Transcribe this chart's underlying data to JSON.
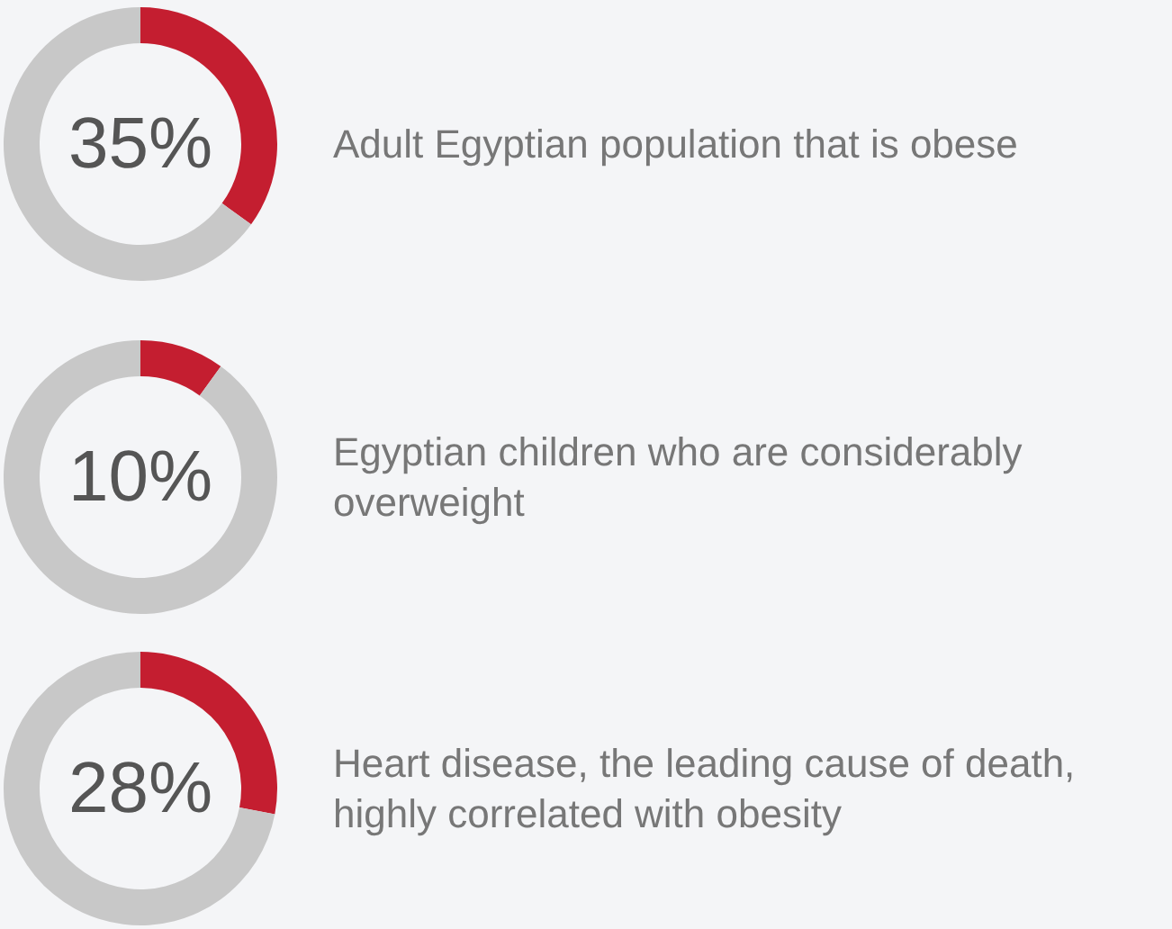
{
  "chart_data": [
    {
      "type": "donut",
      "categories": [
        null,
        null
      ],
      "values": [
        35,
        65
      ],
      "colors": [
        "#c41e30",
        "#c8c8c8"
      ],
      "value_labels": [
        "35%",
        null
      ],
      "annotations": [
        "Adult Egyptian population that is obese"
      ]
    },
    {
      "type": "donut",
      "categories": [
        null,
        null
      ],
      "values": [
        10,
        90
      ],
      "colors": [
        "#c41e30",
        "#c8c8c8"
      ],
      "value_labels": [
        "10%",
        null
      ],
      "annotations": [
        "Egyptian children who are considerably overweight"
      ]
    },
    {
      "type": "donut",
      "categories": [
        null,
        null
      ],
      "values": [
        28,
        72
      ],
      "colors": [
        "#c41e30",
        "#c8c8c8"
      ],
      "value_labels": [
        "28%",
        null
      ],
      "annotations": [
        "Heart disease, the leading cause of death, highly correlated with obesity"
      ]
    }
  ]
}
